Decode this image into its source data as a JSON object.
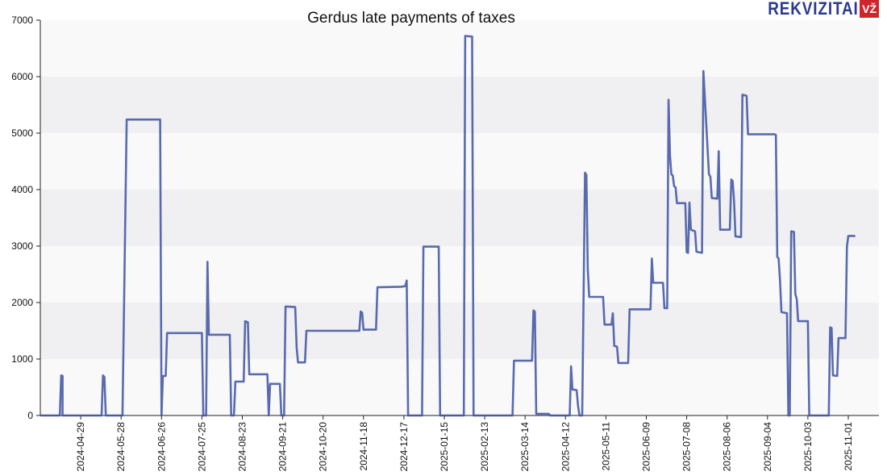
{
  "logo": {
    "text": "REKVIZITAI",
    "badge": "VŽ"
  },
  "chart_data": {
    "type": "line",
    "title": "Gerdus late payments of taxes",
    "xlabel": "",
    "ylabel": "",
    "ylim": [
      0,
      7000
    ],
    "yticks": [
      0,
      1000,
      2000,
      3000,
      4000,
      5000,
      6000,
      7000
    ],
    "xlim": [
      "2024-03-31",
      "2025-11-23"
    ],
    "xticks": [
      "2024-04-29",
      "2024-05-28",
      "2024-06-26",
      "2024-07-25",
      "2024-08-23",
      "2024-09-21",
      "2024-10-20",
      "2024-11-18",
      "2024-12-17",
      "2025-01-15",
      "2025-02-13",
      "2025-03-14",
      "2025-04-12",
      "2025-05-11",
      "2025-06-09",
      "2025-07-08",
      "2025-08-06",
      "2025-09-04",
      "2025-10-03",
      "2025-11-01"
    ],
    "grid": "horizontal bands",
    "colors": {
      "line": "#3d52a1",
      "band": "#f0f0f2",
      "plot_bg": "#f9f9fa"
    },
    "series": [
      {
        "values": [
          [
            "2024-03-31",
            0
          ],
          [
            "2024-04-14",
            0
          ],
          [
            "2024-04-15",
            710
          ],
          [
            "2024-04-16",
            700
          ],
          [
            "2024-04-16",
            0
          ],
          [
            "2024-05-14",
            0
          ],
          [
            "2024-05-15",
            710
          ],
          [
            "2024-05-16",
            680
          ],
          [
            "2024-05-17",
            0
          ],
          [
            "2024-05-29",
            0
          ],
          [
            "2024-06-01",
            5240
          ],
          [
            "2024-06-25",
            5240
          ],
          [
            "2024-06-26",
            0
          ],
          [
            "2024-06-27",
            700
          ],
          [
            "2024-06-29",
            700
          ],
          [
            "2024-06-30",
            1460
          ],
          [
            "2024-07-25",
            1460
          ],
          [
            "2024-07-26",
            0
          ],
          [
            "2024-07-28",
            0
          ],
          [
            "2024-07-29",
            2720
          ],
          [
            "2024-07-30",
            1430
          ],
          [
            "2024-08-14",
            1430
          ],
          [
            "2024-08-15",
            0
          ],
          [
            "2024-08-17",
            0
          ],
          [
            "2024-08-18",
            600
          ],
          [
            "2024-08-24",
            600
          ],
          [
            "2024-08-25",
            1670
          ],
          [
            "2024-08-27",
            1650
          ],
          [
            "2024-08-28",
            730
          ],
          [
            "2024-09-10",
            730
          ],
          [
            "2024-09-11",
            0
          ],
          [
            "2024-09-12",
            560
          ],
          [
            "2024-09-19",
            560
          ],
          [
            "2024-09-20",
            0
          ],
          [
            "2024-09-22",
            0
          ],
          [
            "2024-09-23",
            1930
          ],
          [
            "2024-09-30",
            1920
          ],
          [
            "2024-10-01",
            1200
          ],
          [
            "2024-10-02",
            940
          ],
          [
            "2024-10-07",
            940
          ],
          [
            "2024-10-08",
            1500
          ],
          [
            "2024-11-15",
            1500
          ],
          [
            "2024-11-16",
            1840
          ],
          [
            "2024-11-17",
            1820
          ],
          [
            "2024-11-18",
            1520
          ],
          [
            "2024-11-27",
            1520
          ],
          [
            "2024-11-28",
            2270
          ],
          [
            "2024-12-15",
            2280
          ],
          [
            "2024-12-18",
            2290
          ],
          [
            "2024-12-19",
            2390
          ],
          [
            "2024-12-20",
            0
          ],
          [
            "2024-12-30",
            0
          ],
          [
            "2024-12-31",
            2990
          ],
          [
            "2025-01-11",
            2990
          ],
          [
            "2025-01-12",
            0
          ],
          [
            "2025-01-29",
            0
          ],
          [
            "2025-01-30",
            6720
          ],
          [
            "2025-02-04",
            6710
          ],
          [
            "2025-02-05",
            0
          ],
          [
            "2025-03-05",
            0
          ],
          [
            "2025-03-06",
            970
          ],
          [
            "2025-03-19",
            970
          ],
          [
            "2025-03-20",
            1860
          ],
          [
            "2025-03-21",
            1840
          ],
          [
            "2025-03-22",
            30
          ],
          [
            "2025-03-31",
            30
          ],
          [
            "2025-04-01",
            0
          ],
          [
            "2025-04-15",
            0
          ],
          [
            "2025-04-16",
            870
          ],
          [
            "2025-04-17",
            460
          ],
          [
            "2025-04-20",
            450
          ],
          [
            "2025-04-21",
            180
          ],
          [
            "2025-04-22",
            0
          ],
          [
            "2025-04-24",
            0
          ],
          [
            "2025-04-26",
            4300
          ],
          [
            "2025-04-27",
            4260
          ],
          [
            "2025-04-28",
            2600
          ],
          [
            "2025-04-29",
            2100
          ],
          [
            "2025-05-09",
            2100
          ],
          [
            "2025-05-10",
            1610
          ],
          [
            "2025-05-15",
            1610
          ],
          [
            "2025-05-16",
            1810
          ],
          [
            "2025-05-17",
            1230
          ],
          [
            "2025-05-19",
            1220
          ],
          [
            "2025-05-20",
            930
          ],
          [
            "2025-05-27",
            930
          ],
          [
            "2025-05-28",
            1880
          ],
          [
            "2025-06-12",
            1880
          ],
          [
            "2025-06-13",
            2780
          ],
          [
            "2025-06-14",
            2350
          ],
          [
            "2025-06-21",
            2350
          ],
          [
            "2025-06-22",
            1900
          ],
          [
            "2025-06-24",
            1900
          ],
          [
            "2025-06-25",
            5590
          ],
          [
            "2025-06-26",
            4600
          ],
          [
            "2025-06-27",
            4270
          ],
          [
            "2025-06-28",
            4250
          ],
          [
            "2025-06-29",
            4060
          ],
          [
            "2025-06-30",
            4040
          ],
          [
            "2025-07-01",
            3760
          ],
          [
            "2025-07-07",
            3760
          ],
          [
            "2025-07-08",
            2890
          ],
          [
            "2025-07-09",
            2880
          ],
          [
            "2025-07-10",
            3770
          ],
          [
            "2025-07-11",
            3290
          ],
          [
            "2025-07-14",
            3260
          ],
          [
            "2025-07-15",
            2900
          ],
          [
            "2025-07-19",
            2880
          ],
          [
            "2025-07-20",
            6100
          ],
          [
            "2025-07-24",
            4270
          ],
          [
            "2025-07-25",
            4230
          ],
          [
            "2025-07-26",
            3850
          ],
          [
            "2025-07-30",
            3840
          ],
          [
            "2025-07-31",
            4680
          ],
          [
            "2025-08-01",
            3290
          ],
          [
            "2025-08-08",
            3290
          ],
          [
            "2025-08-09",
            4180
          ],
          [
            "2025-08-10",
            4150
          ],
          [
            "2025-08-11",
            3800
          ],
          [
            "2025-08-12",
            3170
          ],
          [
            "2025-08-16",
            3160
          ],
          [
            "2025-08-17",
            5680
          ],
          [
            "2025-08-20",
            5660
          ],
          [
            "2025-08-21",
            4980
          ],
          [
            "2025-09-09",
            4980
          ],
          [
            "2025-09-10",
            4970
          ],
          [
            "2025-09-11",
            2810
          ],
          [
            "2025-09-12",
            2780
          ],
          [
            "2025-09-13",
            2400
          ],
          [
            "2025-09-14",
            1830
          ],
          [
            "2025-09-18",
            1810
          ],
          [
            "2025-09-19",
            0
          ],
          [
            "2025-09-20",
            0
          ],
          [
            "2025-09-21",
            3260
          ],
          [
            "2025-09-23",
            3250
          ],
          [
            "2025-09-24",
            2150
          ],
          [
            "2025-09-25",
            2060
          ],
          [
            "2025-09-26",
            1670
          ],
          [
            "2025-10-03",
            1670
          ],
          [
            "2025-10-04",
            0
          ],
          [
            "2025-10-18",
            0
          ],
          [
            "2025-10-19",
            1560
          ],
          [
            "2025-10-20",
            1550
          ],
          [
            "2025-10-21",
            710
          ],
          [
            "2025-10-24",
            700
          ],
          [
            "2025-10-25",
            1370
          ],
          [
            "2025-10-30",
            1370
          ],
          [
            "2025-10-31",
            2990
          ],
          [
            "2025-11-01",
            3180
          ],
          [
            "2025-11-05",
            3180
          ],
          [
            "2025-11-06",
            3170
          ]
        ]
      }
    ]
  }
}
